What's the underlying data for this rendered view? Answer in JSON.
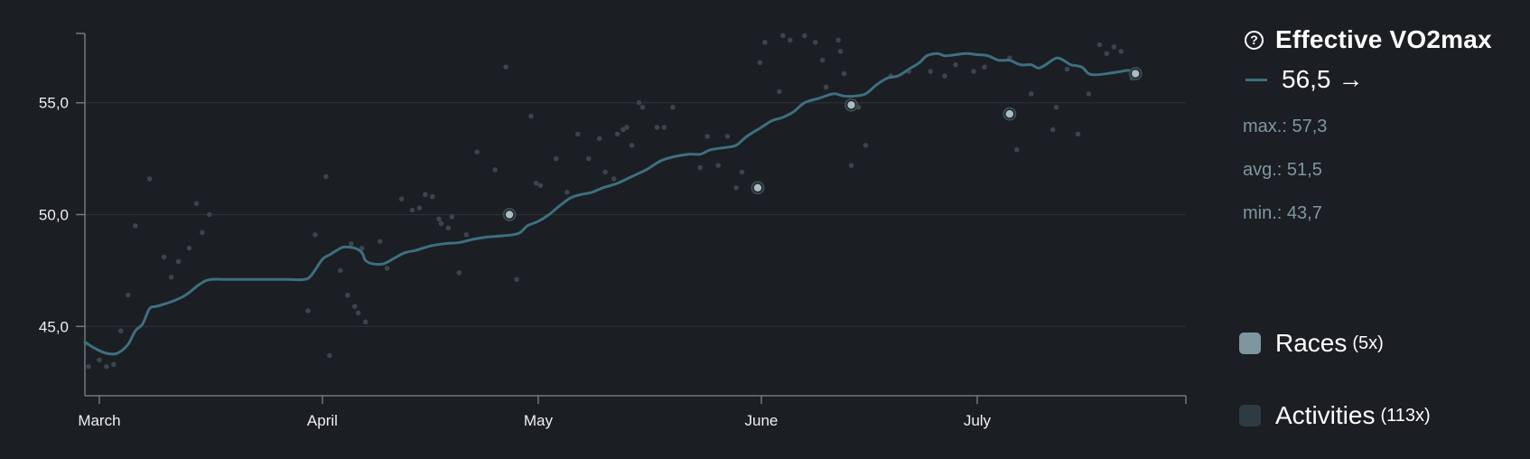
{
  "panel": {
    "help_icon": "?",
    "title": "Effective VO2max",
    "current_value": "56,5",
    "trend_arrow": "→",
    "stats": [
      "max.: 57,3",
      "avg.: 51,5",
      "min.: 43,7"
    ]
  },
  "legend": [
    {
      "label": "Races",
      "count": "(5x)",
      "color": "#7d96a0"
    },
    {
      "label": "Activities",
      "count": "(113x)",
      "color": "#2f3b42"
    }
  ],
  "colors": {
    "background": "#1b1e22",
    "line": "#3d6f80",
    "race_dot": "#a9bcc3",
    "activity_dot": "#3a454c",
    "grid": "#2c3036",
    "axis": "#73787d"
  },
  "chart_data": {
    "type": "line",
    "title": "Effective VO2max",
    "x_ticks": [
      {
        "label": "March",
        "day": 2
      },
      {
        "label": "April",
        "day": 33
      },
      {
        "label": "May",
        "day": 63
      },
      {
        "label": "June",
        "day": 94
      },
      {
        "label": "July",
        "day": 124
      }
    ],
    "xlim": [
      0,
      153
    ],
    "ylim": [
      41.9,
      58.1
    ],
    "y_ticks": [
      {
        "label": "45,0",
        "value": 45
      },
      {
        "label": "50,0",
        "value": 50
      },
      {
        "label": "55,0",
        "value": 55
      }
    ],
    "grid": "horizontal",
    "series": [
      {
        "name": "Effective VO2max",
        "points": [
          [
            0,
            44.3
          ],
          [
            1.5,
            44.0
          ],
          [
            3,
            43.8
          ],
          [
            4.5,
            43.8
          ],
          [
            6,
            44.2
          ],
          [
            7,
            44.8
          ],
          [
            8,
            45.1
          ],
          [
            9,
            45.8
          ],
          [
            10,
            45.9
          ],
          [
            12,
            46.1
          ],
          [
            14,
            46.4
          ],
          [
            16,
            46.9
          ],
          [
            17.5,
            47.1
          ],
          [
            20,
            47.1
          ],
          [
            24,
            47.1
          ],
          [
            28,
            47.1
          ],
          [
            30.5,
            47.1
          ],
          [
            31.5,
            47.3
          ],
          [
            33,
            48.0
          ],
          [
            34,
            48.2
          ],
          [
            35,
            48.4
          ],
          [
            36,
            48.55
          ],
          [
            37.5,
            48.5
          ],
          [
            38.5,
            48.3
          ],
          [
            39,
            47.95
          ],
          [
            40,
            47.8
          ],
          [
            41.5,
            47.8
          ],
          [
            43,
            48.05
          ],
          [
            44.5,
            48.3
          ],
          [
            46,
            48.4
          ],
          [
            48,
            48.6
          ],
          [
            50,
            48.7
          ],
          [
            52,
            48.75
          ],
          [
            54,
            48.9
          ],
          [
            56,
            49.0
          ],
          [
            58,
            49.05
          ],
          [
            59.5,
            49.1
          ],
          [
            60.5,
            49.2
          ],
          [
            61.5,
            49.5
          ],
          [
            63,
            49.7
          ],
          [
            64.5,
            50.0
          ],
          [
            66,
            50.4
          ],
          [
            67.5,
            50.75
          ],
          [
            69,
            50.9
          ],
          [
            70.5,
            51.0
          ],
          [
            72,
            51.2
          ],
          [
            74,
            51.4
          ],
          [
            76,
            51.7
          ],
          [
            78,
            52.0
          ],
          [
            80,
            52.4
          ],
          [
            82,
            52.6
          ],
          [
            84,
            52.7
          ],
          [
            85.5,
            52.7
          ],
          [
            87,
            52.9
          ],
          [
            89,
            53.0
          ],
          [
            90.5,
            53.1
          ],
          [
            92,
            53.5
          ],
          [
            94,
            53.9
          ],
          [
            95.5,
            54.2
          ],
          [
            97,
            54.35
          ],
          [
            98.5,
            54.6
          ],
          [
            100,
            55.0
          ],
          [
            102,
            55.2
          ],
          [
            104,
            55.4
          ],
          [
            105.5,
            55.3
          ],
          [
            107,
            55.3
          ],
          [
            108.5,
            55.4
          ],
          [
            110,
            55.8
          ],
          [
            111.5,
            56.1
          ],
          [
            113,
            56.2
          ],
          [
            114.5,
            56.5
          ],
          [
            116,
            56.8
          ],
          [
            117,
            57.1
          ],
          [
            118.5,
            57.2
          ],
          [
            119.5,
            57.1
          ],
          [
            121,
            57.15
          ],
          [
            122.5,
            57.2
          ],
          [
            124,
            57.15
          ],
          [
            125.5,
            57.1
          ],
          [
            127,
            56.9
          ],
          [
            128.5,
            56.9
          ],
          [
            130,
            56.7
          ],
          [
            131.5,
            56.7
          ],
          [
            132.5,
            56.55
          ],
          [
            133.5,
            56.7
          ],
          [
            135,
            57.0
          ],
          [
            136,
            56.9
          ],
          [
            137,
            56.7
          ],
          [
            138.5,
            56.6
          ],
          [
            139.5,
            56.3
          ],
          [
            140.5,
            56.25
          ],
          [
            142,
            56.3
          ],
          [
            144,
            56.4
          ],
          [
            145,
            56.45
          ],
          [
            146,
            56.4
          ]
        ]
      },
      {
        "name": "Races",
        "points": [
          [
            59,
            50.0
          ],
          [
            93.5,
            51.2
          ],
          [
            106.5,
            54.9
          ],
          [
            128.5,
            54.5
          ],
          [
            146,
            56.3
          ]
        ]
      },
      {
        "name": "Activities",
        "points": [
          [
            0.5,
            43.2
          ],
          [
            2,
            43.5
          ],
          [
            3,
            43.2
          ],
          [
            4,
            43.3
          ],
          [
            5,
            44.8
          ],
          [
            6,
            46.4
          ],
          [
            7,
            49.5
          ],
          [
            9,
            51.6
          ],
          [
            11,
            48.1
          ],
          [
            12,
            47.2
          ],
          [
            13,
            47.9
          ],
          [
            14.5,
            48.5
          ],
          [
            15.5,
            50.5
          ],
          [
            16.3,
            49.2
          ],
          [
            17.3,
            50.0
          ],
          [
            31,
            45.7
          ],
          [
            32,
            49.1
          ],
          [
            33.5,
            51.7
          ],
          [
            34,
            43.7
          ],
          [
            35.5,
            47.5
          ],
          [
            36.5,
            46.4
          ],
          [
            37,
            48.7
          ],
          [
            37.5,
            45.9
          ],
          [
            38,
            45.6
          ],
          [
            38.5,
            48.5
          ],
          [
            39,
            45.2
          ],
          [
            41,
            48.8
          ],
          [
            42,
            47.6
          ],
          [
            44,
            50.7
          ],
          [
            45.5,
            50.2
          ],
          [
            46.5,
            50.3
          ],
          [
            47.3,
            50.9
          ],
          [
            48.3,
            50.8
          ],
          [
            49.2,
            49.8
          ],
          [
            49.5,
            49.6
          ],
          [
            50.5,
            49.4
          ],
          [
            51,
            49.9
          ],
          [
            52,
            47.4
          ],
          [
            53,
            49.1
          ],
          [
            54.5,
            52.8
          ],
          [
            57,
            52.0
          ],
          [
            58.5,
            56.6
          ],
          [
            60,
            47.1
          ],
          [
            62,
            54.4
          ],
          [
            62.7,
            51.4
          ],
          [
            63.3,
            51.3
          ],
          [
            65.5,
            52.5
          ],
          [
            67,
            51.0
          ],
          [
            68.5,
            53.6
          ],
          [
            70,
            52.5
          ],
          [
            71.5,
            53.4
          ],
          [
            72.3,
            51.9
          ],
          [
            73.5,
            51.6
          ],
          [
            74,
            53.6
          ],
          [
            74.8,
            53.8
          ],
          [
            75.3,
            53.9
          ],
          [
            76,
            53.1
          ],
          [
            77,
            55.0
          ],
          [
            77.5,
            54.8
          ],
          [
            79.5,
            53.9
          ],
          [
            80.5,
            53.9
          ],
          [
            81.7,
            54.8
          ],
          [
            85.5,
            52.1
          ],
          [
            86.5,
            53.5
          ],
          [
            88,
            52.2
          ],
          [
            89.3,
            53.5
          ],
          [
            90.5,
            51.2
          ],
          [
            91.3,
            51.9
          ],
          [
            93.8,
            56.8
          ],
          [
            94.5,
            57.7
          ],
          [
            96.5,
            55.5
          ],
          [
            97,
            58.0
          ],
          [
            98,
            57.8
          ],
          [
            100,
            58.0
          ],
          [
            101.5,
            57.7
          ],
          [
            102.5,
            56.9
          ],
          [
            103,
            55.7
          ],
          [
            104.7,
            57.8
          ],
          [
            105,
            57.3
          ],
          [
            105.5,
            56.3
          ],
          [
            106.5,
            52.2
          ],
          [
            107.5,
            54.8
          ],
          [
            108.5,
            53.1
          ],
          [
            112,
            56.2
          ],
          [
            114.5,
            56.4
          ],
          [
            117.5,
            56.4
          ],
          [
            119.5,
            56.2
          ],
          [
            121,
            56.7
          ],
          [
            123.5,
            56.4
          ],
          [
            125,
            56.6
          ],
          [
            128.5,
            57.0
          ],
          [
            129.5,
            52.9
          ],
          [
            131.5,
            55.4
          ],
          [
            134.5,
            53.8
          ],
          [
            135,
            54.8
          ],
          [
            136.5,
            56.5
          ],
          [
            138,
            53.6
          ],
          [
            139.5,
            55.4
          ],
          [
            141,
            57.6
          ],
          [
            142,
            57.2
          ],
          [
            143,
            57.5
          ],
          [
            144,
            57.3
          ],
          [
            145.5,
            56.1
          ]
        ]
      }
    ]
  }
}
